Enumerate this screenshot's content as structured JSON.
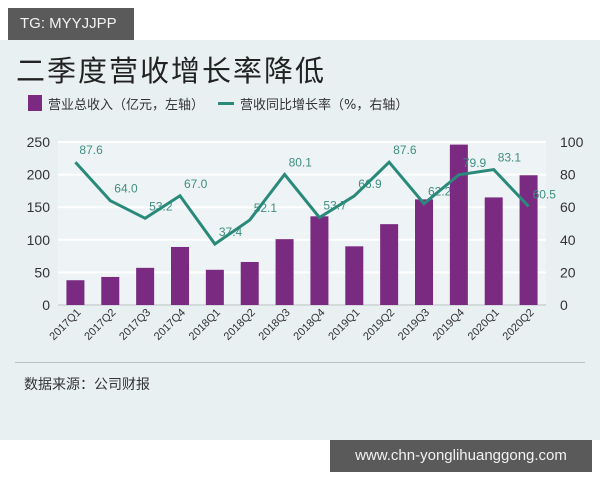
{
  "watermark_tag": "TG: MYYJJPP",
  "footer_url": "www.chn-yonglihuanggong.com",
  "source": "数据来源：公司财报",
  "colors": {
    "bar": "#7b2a82",
    "line": "#2a8a7a",
    "background": "#e9f0f2"
  },
  "chart_data": {
    "type": "bar+line",
    "title": "二季度营收增长率降低",
    "legend": [
      {
        "name": "营业总收入（亿元，左轴）",
        "type": "bar"
      },
      {
        "name": "营收同比增长率（%，右轴）",
        "type": "line"
      }
    ],
    "categories": [
      "2017Q1",
      "2017Q2",
      "2017Q3",
      "2017Q4",
      "2018Q1",
      "2018Q2",
      "2018Q3",
      "2018Q4",
      "2019Q1",
      "2019Q2",
      "2019Q3",
      "2019Q4",
      "2020Q1",
      "2020Q2"
    ],
    "series": [
      {
        "name": "营业总收入（亿元，左轴）",
        "axis": "left",
        "values": [
          38,
          43,
          57,
          89,
          54,
          66,
          101,
          136,
          90,
          124,
          162,
          246,
          165,
          199
        ]
      },
      {
        "name": "营收同比增长率（%，右轴）",
        "axis": "right",
        "values": [
          87.6,
          64.0,
          53.2,
          67.0,
          37.4,
          52.1,
          80.1,
          53.7,
          66.9,
          87.6,
          62.2,
          79.9,
          83.1,
          60.5
        ]
      }
    ],
    "left_axis": {
      "ticks": [
        "0",
        "50",
        "100",
        "150",
        "200",
        "250"
      ],
      "ylim": [
        0,
        250
      ]
    },
    "right_axis": {
      "ticks": [
        "0",
        "20",
        "40",
        "60",
        "80",
        "100"
      ],
      "ylim": [
        0,
        100
      ]
    },
    "data_labels": [
      "87.6",
      "64.0",
      "53.2",
      "67.0",
      "37.4",
      "52.1",
      "80.1",
      "53.7",
      "66.9",
      "87.6",
      "62.2",
      "79.9",
      "83.1",
      "60.5"
    ],
    "grid": true
  }
}
